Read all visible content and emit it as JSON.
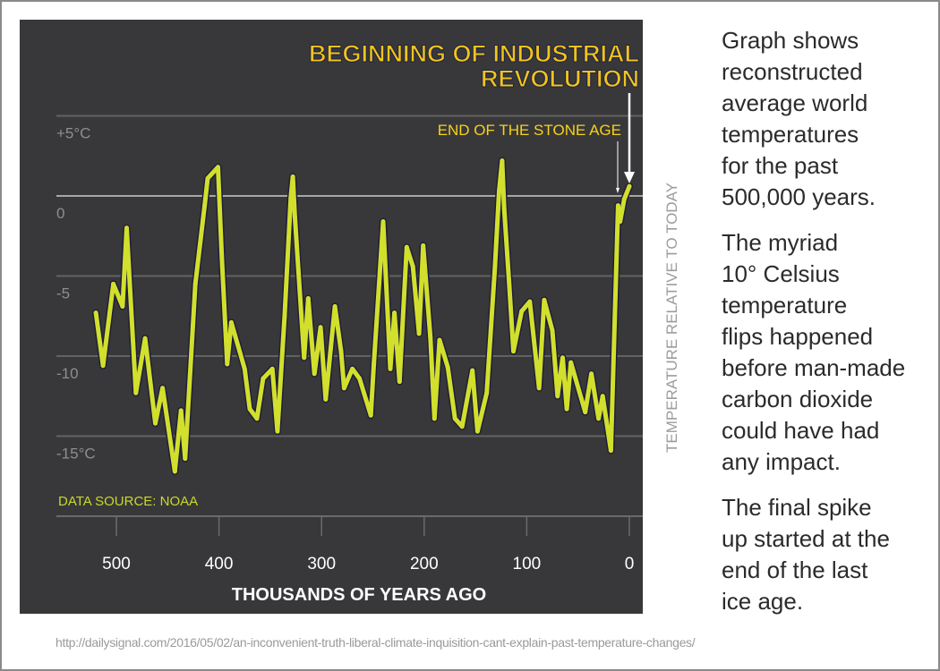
{
  "chart_data": {
    "type": "line",
    "title": "BEGINNING OF INDUSTRIAL REVOLUTION",
    "annotations": [
      "BEGINNING OF INDUSTRIAL REVOLUTION",
      "END OF THE STONE AGE",
      "DATA SOURCE: NOAA"
    ],
    "xlabel": "THOUSANDS OF YEARS AGO",
    "ylabel": "TEMPERATURE RELATIVE TO TODAY",
    "xlim": [
      530,
      0
    ],
    "ylim": [
      -18,
      5
    ],
    "x_ticks": [
      "500",
      "400",
      "300",
      "200",
      "100",
      "0"
    ],
    "y_ticks": [
      "+5°C",
      "0",
      "-5",
      "-10",
      "-15°C"
    ],
    "y_tick_values": [
      5,
      0,
      -5,
      -10,
      -15
    ],
    "grid": true,
    "line_color": "#d2df2c",
    "x": [
      520,
      513,
      503,
      494,
      490,
      481,
      472,
      462,
      455,
      443,
      437,
      433,
      423,
      414,
      411,
      401,
      397,
      392,
      388,
      375,
      370,
      363,
      357,
      348,
      343,
      336,
      330,
      328,
      326,
      317,
      313,
      307,
      301,
      296,
      287,
      281,
      278,
      270,
      263,
      252,
      249,
      240,
      233,
      229,
      224,
      217,
      211,
      205,
      201,
      194,
      190,
      185,
      177,
      170,
      163,
      153,
      148,
      139,
      131,
      127,
      124,
      122,
      117,
      113,
      105,
      97,
      88,
      83,
      75,
      70,
      65,
      61,
      57,
      43,
      37,
      30,
      26,
      18,
      11,
      9,
      5,
      0
    ],
    "y": [
      -7.3,
      -10.6,
      -5.5,
      -6.9,
      -2.0,
      -12.3,
      -8.9,
      -14.2,
      -12.0,
      -17.2,
      -13.4,
      -16.4,
      -5.5,
      -0.6,
      1.1,
      1.8,
      -4.1,
      -10.5,
      -7.9,
      -10.8,
      -13.3,
      -13.9,
      -11.4,
      -10.8,
      -14.7,
      -7.5,
      -0.1,
      1.2,
      -1.3,
      -10.1,
      -6.4,
      -11.1,
      -8.2,
      -12.7,
      -6.9,
      -9.7,
      -12.0,
      -10.8,
      -11.4,
      -13.7,
      -10.5,
      -1.6,
      -10.8,
      -7.3,
      -11.6,
      -3.2,
      -4.4,
      -8.6,
      -3.1,
      -8.8,
      -13.9,
      -9.0,
      -10.7,
      -13.9,
      -14.4,
      -10.9,
      -14.7,
      -12.3,
      -4.4,
      0.3,
      2.2,
      -0.8,
      -5.6,
      -9.7,
      -7.2,
      -6.6,
      -12.0,
      -6.5,
      -8.4,
      -12.5,
      -10.1,
      -13.3,
      -10.4,
      -13.5,
      -11.1,
      -13.9,
      -12.5,
      -15.9,
      -0.6,
      -1.6,
      -0.2,
      0.6
    ]
  },
  "side_text": {
    "p1": "Graph shows\nreconstructed\naverage world\ntemperatures\nfor the past\n500,000 years.",
    "p2": "The myriad\n10° Celsius\ntemperature\nflips happened\nbefore man-made\ncarbon dioxide\ncould have had\nany impact.",
    "p3": "The final spike\nup started at the\nend of the last\nice age."
  },
  "source_url": "http://dailysignal.com/2016/05/02/an-inconvenient-truth-liberal-climate-inquisition-cant-explain-past-temperature-changes/"
}
